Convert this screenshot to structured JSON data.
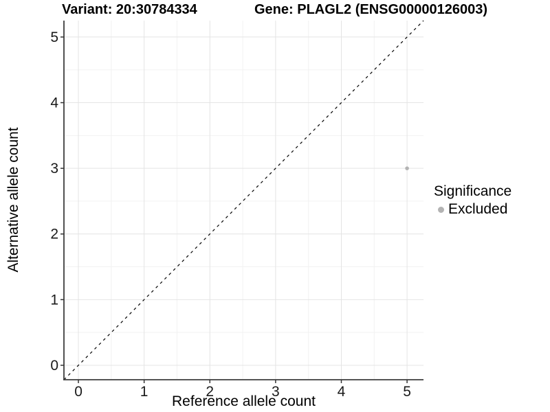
{
  "header": {
    "variant_title": "Variant: 20:30784334",
    "gene_title": "Gene: PLAGL2 (ENSG00000126003)"
  },
  "chart_data": {
    "type": "scatter",
    "title_left": "Variant: 20:30784334",
    "title_right": "Gene: PLAGL2 (ENSG00000126003)",
    "xlabel": "Reference allele count",
    "ylabel": "Alternative allele count",
    "xlim": [
      -0.22,
      5.25
    ],
    "ylim": [
      -0.22,
      5.25
    ],
    "x_ticks": [
      0,
      1,
      2,
      3,
      4,
      5
    ],
    "y_ticks": [
      0,
      1,
      2,
      3,
      4,
      5
    ],
    "grid": {
      "major_step": 1,
      "minor_step": 0.5,
      "major_color": "#e4e4e4",
      "minor_color": "#f2f2f2"
    },
    "identity_line": {
      "equation": "y = x",
      "style": "dashed",
      "color": "#000000",
      "from": [
        -0.22,
        -0.22
      ],
      "to": [
        5.25,
        5.25
      ]
    },
    "series": [
      {
        "name": "Excluded",
        "color": "#b3b3b3",
        "points": [
          {
            "x": 5,
            "y": 3
          }
        ]
      }
    ],
    "legend": {
      "title": "Significance",
      "position": "right",
      "items": [
        {
          "label": "Excluded",
          "color": "#b3b3b3"
        }
      ]
    },
    "axis_color": "#3d3d3d",
    "tick_color": "#333333",
    "point_radius": 2.8
  }
}
